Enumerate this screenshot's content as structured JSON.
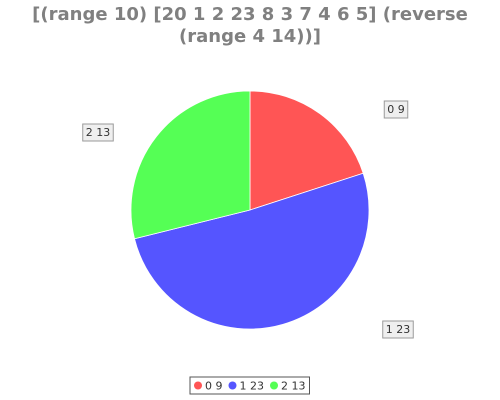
{
  "chart_data": {
    "type": "pie",
    "title_lines": [
      "[(range 10) [20 1 2 23 8 3 7 4 6 5] (reverse",
      "(range 4 14))]"
    ],
    "slices": [
      {
        "label": "0 9",
        "value": 9,
        "color": "#ff5555"
      },
      {
        "label": "1 23",
        "value": 23,
        "color": "#5555ff"
      },
      {
        "label": "2 13",
        "value": 13,
        "color": "#55ff55"
      }
    ],
    "legend": {
      "placement": "bottom-center",
      "entries": [
        "0 9",
        "1 23",
        "2 13"
      ]
    }
  }
}
